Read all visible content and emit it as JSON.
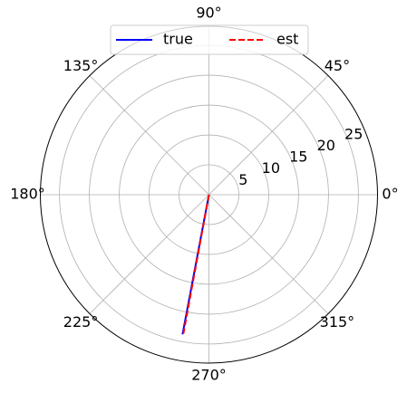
{
  "chart_data": {
    "type": "polar",
    "series": [
      {
        "name": "true",
        "color": "blue",
        "linestyle": "solid",
        "theta": [
          259.3,
          259.3
        ],
        "r": [
          0,
          23.8
        ]
      },
      {
        "name": "est",
        "color": "red",
        "linestyle": "dashed",
        "theta": [
          259.6,
          259.6
        ],
        "r": [
          0,
          23.6
        ]
      }
    ],
    "rlim": [
      0,
      28.2
    ],
    "rticks": [
      5,
      10,
      15,
      20,
      25
    ],
    "thetaticks": [
      {
        "value": 0,
        "label": "0°"
      },
      {
        "value": 45,
        "label": "45°"
      },
      {
        "value": 90,
        "label": "90°"
      },
      {
        "value": 135,
        "label": "135°"
      },
      {
        "value": 180,
        "label": "180°"
      },
      {
        "value": 225,
        "label": "225°"
      },
      {
        "value": 270,
        "label": "270°"
      },
      {
        "value": 315,
        "label": "315°"
      }
    ],
    "rlabel_angle": 22.5,
    "grid": true,
    "legend": "upper center"
  }
}
